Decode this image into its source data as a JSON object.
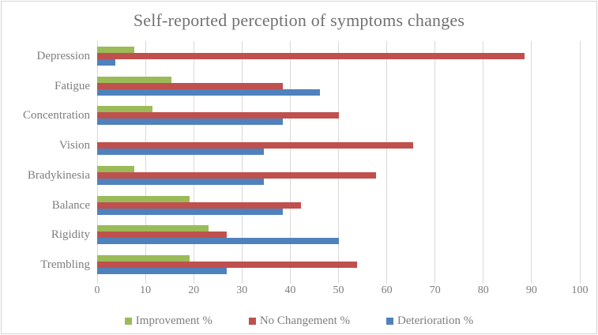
{
  "chart_data": {
    "type": "bar",
    "orientation": "horizontal",
    "title": "Self-reported perception of symptoms changes",
    "categories": [
      "Depression",
      "Fatigue",
      "Concentration",
      "Vision",
      "Bradykinesia",
      "Balance",
      "Rigidity",
      "Trembling"
    ],
    "series": [
      {
        "name": "Improvement %",
        "color": "#9BBB59",
        "values": [
          7.7,
          15.4,
          11.5,
          0,
          7.7,
          19.2,
          23.1,
          19.2
        ]
      },
      {
        "name": "No Changement %",
        "color": "#C0504D",
        "values": [
          88.5,
          38.5,
          50.0,
          65.4,
          57.7,
          42.3,
          26.9,
          53.8
        ]
      },
      {
        "name": "Deterioration %",
        "color": "#4F81BD",
        "values": [
          3.8,
          46.2,
          38.5,
          34.6,
          34.6,
          38.5,
          50.0,
          26.9
        ]
      }
    ],
    "xlim": [
      0,
      100
    ],
    "x_ticks": [
      0,
      10,
      20,
      30,
      40,
      50,
      60,
      70,
      80,
      90,
      100
    ],
    "grid": true,
    "legend_position": "bottom",
    "colors": {
      "gridline": "#d9d9d9",
      "text": "#7e7e7e",
      "title_text": "#717171",
      "frame_border": "#d3d3d3",
      "background": "#ffffff"
    }
  }
}
